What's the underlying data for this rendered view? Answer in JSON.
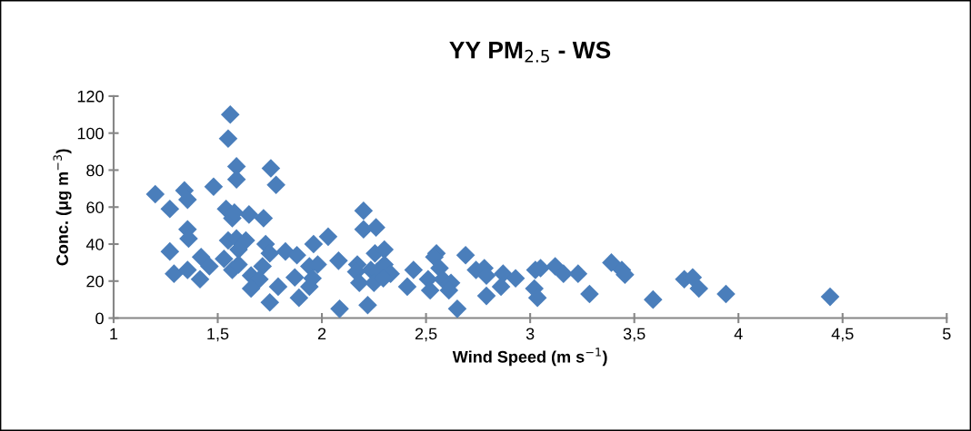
{
  "chart_data": {
    "type": "scatter",
    "title": "YY PM$_{2.5}$ - WS",
    "xlabel": "Wind Speed (m s$^{−1}$)",
    "ylabel": "Conc. (μg m$^{−3}$)",
    "xlim": [
      1,
      5
    ],
    "ylim": [
      0,
      120
    ],
    "xticks": [
      1,
      {
        "value": 1.5,
        "label": "1,5"
      },
      2,
      {
        "value": 2.5,
        "label": "2,5"
      },
      3,
      {
        "value": 3.5,
        "label": "3,5"
      },
      4,
      {
        "value": 4.5,
        "label": "4,5"
      },
      5
    ],
    "yticks": [
      0,
      20,
      40,
      60,
      80,
      100,
      120
    ],
    "grid": false,
    "marker": "diamond",
    "series": [
      {
        "color": "#4a7ebb",
        "x": [
          1.2,
          1.27,
          1.34,
          1.355,
          1.48,
          1.56,
          1.55,
          1.59,
          1.59,
          1.755,
          1.78,
          1.27,
          1.355,
          1.36,
          1.29,
          1.355,
          1.42,
          1.46,
          1.415,
          1.53,
          1.54,
          1.57,
          1.58,
          1.65,
          1.72,
          1.55,
          1.59,
          1.635,
          1.6,
          1.57,
          1.6,
          1.66,
          1.73,
          1.75,
          1.715,
          1.7,
          1.66,
          1.75,
          1.825,
          1.88,
          1.79,
          1.87,
          1.89,
          1.94,
          1.96,
          1.98,
          1.94,
          1.955,
          2.03,
          2.08,
          2.085,
          2.2,
          2.2,
          2.26,
          2.17,
          2.165,
          2.18,
          2.22,
          2.255,
          2.3,
          2.235,
          2.265,
          2.3,
          2.33,
          2.25,
          2.295,
          2.44,
          2.41,
          2.55,
          2.54,
          2.565,
          2.51,
          2.52,
          2.58,
          2.62,
          2.61,
          2.65,
          2.69,
          2.74,
          2.78,
          2.79,
          2.87,
          2.93,
          2.86,
          2.79,
          3.025,
          3.05,
          3.02,
          3.035,
          3.12,
          3.16,
          3.23,
          3.285,
          3.39,
          3.44,
          3.455,
          3.59,
          3.74,
          3.78,
          3.81,
          3.94,
          4.44
        ],
        "values": [
          67,
          59,
          69,
          64,
          71,
          110,
          97,
          82,
          75,
          81,
          72,
          36,
          48,
          43,
          24,
          26,
          33,
          28,
          21,
          32,
          59,
          54,
          57,
          56,
          54,
          42,
          43,
          42,
          37,
          26,
          29,
          23,
          40,
          35,
          28,
          21,
          16,
          8.5,
          36,
          34,
          17,
          22,
          11,
          28,
          40,
          29,
          17,
          21.5,
          44,
          31,
          5,
          58,
          48,
          49,
          29,
          25,
          19,
          7,
          35,
          37,
          26,
          25,
          29,
          24,
          19,
          21.5,
          26,
          17,
          35,
          33,
          27,
          21,
          15,
          21,
          19,
          15,
          5,
          34,
          26,
          27,
          23,
          24,
          21.5,
          17,
          12,
          26,
          27,
          16,
          11,
          28,
          24,
          24,
          13,
          30,
          26,
          23.5,
          10,
          21,
          22,
          16,
          13,
          11.5
        ]
      }
    ]
  }
}
